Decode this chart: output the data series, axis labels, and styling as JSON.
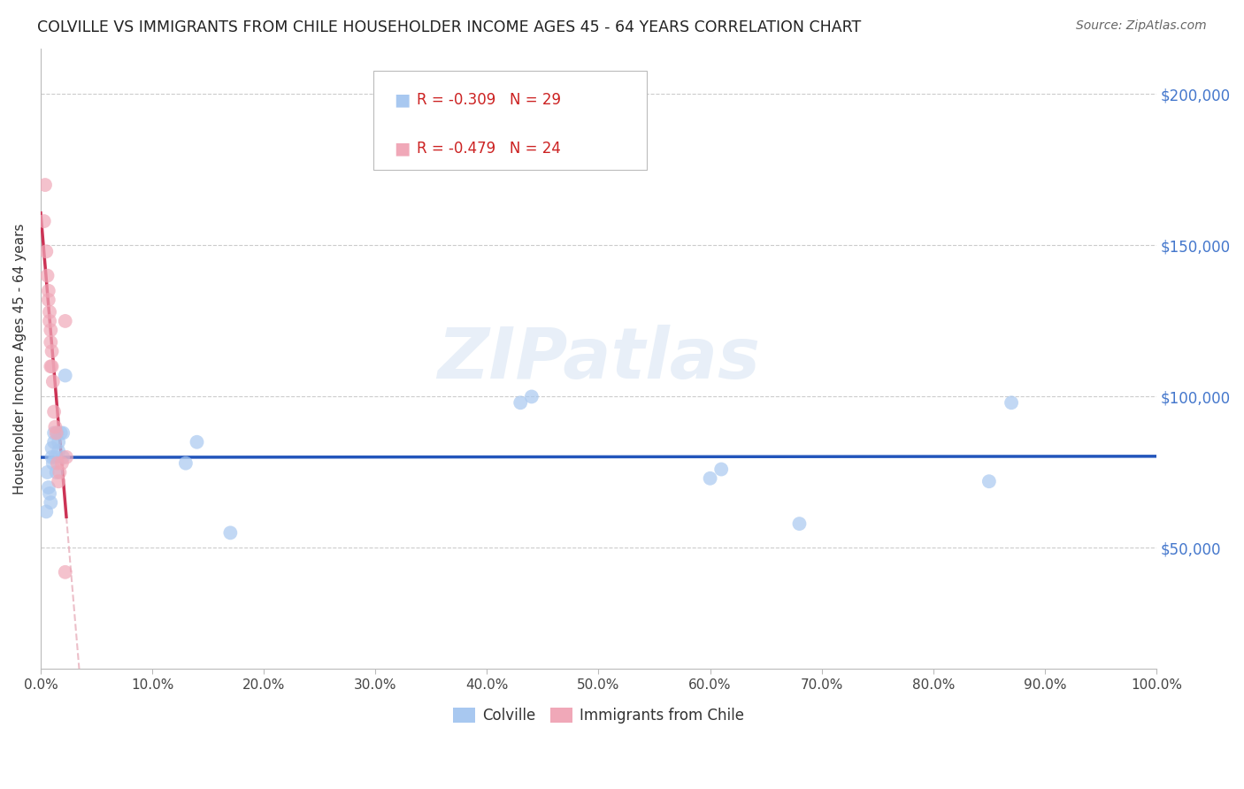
{
  "title": "COLVILLE VS IMMIGRANTS FROM CHILE HOUSEHOLDER INCOME AGES 45 - 64 YEARS CORRELATION CHART",
  "source": "Source: ZipAtlas.com",
  "ylabel": "Householder Income Ages 45 - 64 years",
  "legend_blue_r": "-0.309",
  "legend_blue_n": "29",
  "legend_pink_r": "-0.479",
  "legend_pink_n": "24",
  "legend_label_blue": "Colville",
  "legend_label_pink": "Immigrants from Chile",
  "yticks": [
    50000,
    100000,
    150000,
    200000
  ],
  "ytick_labels": [
    "$50,000",
    "$100,000",
    "$150,000",
    "$200,000"
  ],
  "ylim": [
    10000,
    215000
  ],
  "xlim": [
    0.0,
    1.0
  ],
  "blue_scatter_color": "#a8c8f0",
  "pink_scatter_color": "#f0a8b8",
  "blue_line_color": "#2255bb",
  "pink_line_color": "#cc3355",
  "pink_dash_color": "#e8b0bc",
  "background_color": "#ffffff",
  "grid_color": "#cccccc",
  "colville_x": [
    0.005,
    0.006,
    0.007,
    0.008,
    0.009,
    0.01,
    0.01,
    0.011,
    0.012,
    0.012,
    0.013,
    0.014,
    0.015,
    0.016,
    0.016,
    0.018,
    0.02,
    0.02,
    0.022,
    0.13,
    0.14,
    0.17,
    0.43,
    0.44,
    0.6,
    0.61,
    0.68,
    0.85,
    0.87
  ],
  "colville_y": [
    62000,
    75000,
    70000,
    68000,
    65000,
    80000,
    83000,
    78000,
    85000,
    88000,
    80000,
    75000,
    88000,
    85000,
    82000,
    88000,
    80000,
    88000,
    107000,
    78000,
    85000,
    55000,
    98000,
    100000,
    73000,
    76000,
    58000,
    72000,
    98000
  ],
  "chile_x": [
    0.003,
    0.004,
    0.005,
    0.006,
    0.007,
    0.007,
    0.008,
    0.008,
    0.009,
    0.009,
    0.009,
    0.01,
    0.01,
    0.011,
    0.012,
    0.013,
    0.014,
    0.015,
    0.016,
    0.017,
    0.019,
    0.022,
    0.022,
    0.023
  ],
  "chile_y": [
    158000,
    170000,
    148000,
    140000,
    132000,
    135000,
    128000,
    125000,
    122000,
    118000,
    110000,
    115000,
    110000,
    105000,
    95000,
    90000,
    88000,
    78000,
    72000,
    75000,
    78000,
    42000,
    125000,
    80000
  ],
  "xtick_positions": [
    0.0,
    0.1,
    0.2,
    0.3,
    0.4,
    0.5,
    0.6,
    0.7,
    0.8,
    0.9,
    1.0
  ],
  "xtick_labels": [
    "0.0%",
    "10.0%",
    "20.0%",
    "30.0%",
    "40.0%",
    "50.0%",
    "60.0%",
    "70.0%",
    "80.0%",
    "90.0%",
    "100.0%"
  ],
  "watermark_text": "ZIPatlas",
  "marker_size": 130,
  "marker_alpha": 0.7
}
